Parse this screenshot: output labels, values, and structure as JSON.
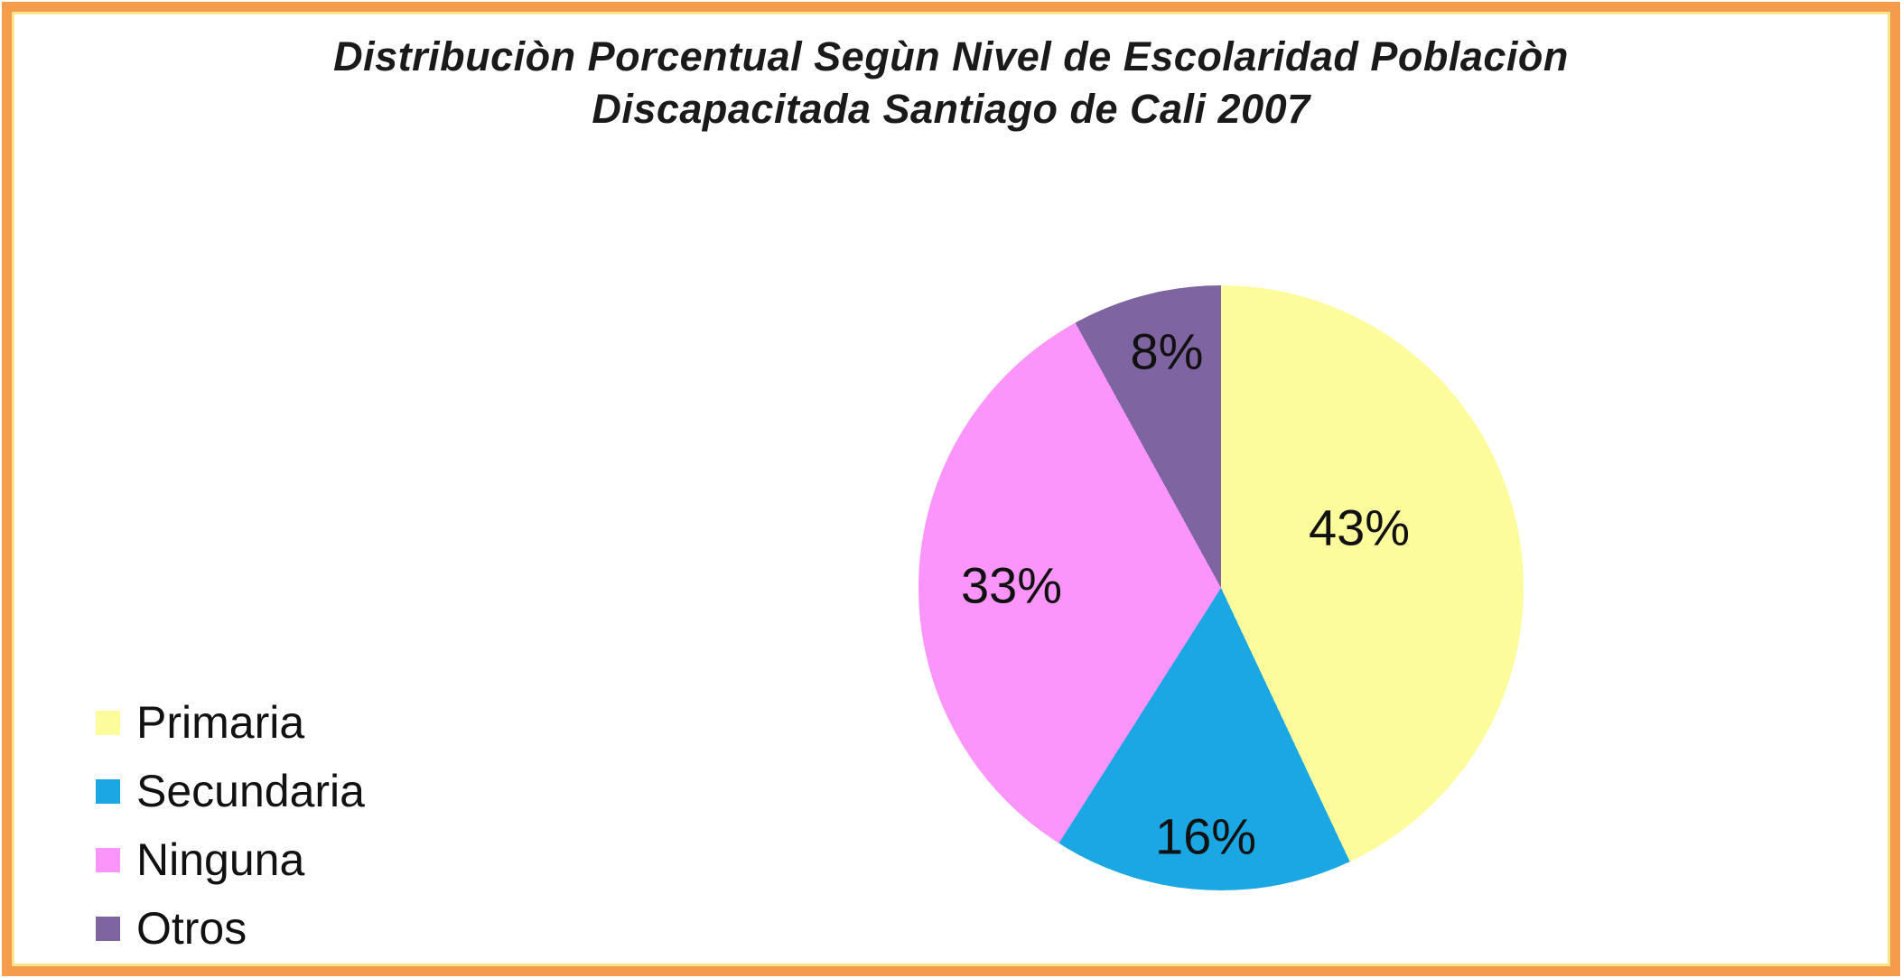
{
  "frame": {
    "border_color": "#F59B4C",
    "inner_line_color": "#FBE48E",
    "background": "#FFFFFF"
  },
  "title": {
    "line1": "Distribuciòn Porcentual Segùn Nivel de Escolaridad Poblaciòn",
    "line2": "Discapacitada Santiago de Cali 2007"
  },
  "chart_data": {
    "type": "pie",
    "title": "Distribuciòn Porcentual Segùn Nivel de Escolaridad Poblaciòn Discapacitada Santiago de Cali 2007",
    "categories": [
      "Primaria",
      "Secundaria",
      "Ninguna",
      "Otros"
    ],
    "values": [
      43,
      16,
      33,
      8
    ],
    "unit": "%",
    "slice_labels": [
      "43%",
      "16%",
      "33%",
      "8%"
    ],
    "colors": [
      "#FCFC9C",
      "#1BA7E4",
      "#FB95FB",
      "#7E64A0"
    ],
    "start_angle_deg": 0,
    "direction": "clockwise",
    "legend_position": "bottom-left",
    "label_color": "#111111",
    "title_color": "#1A1A1A"
  }
}
